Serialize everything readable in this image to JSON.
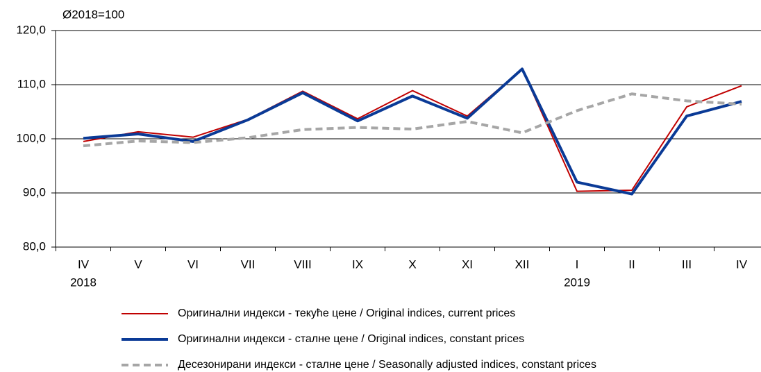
{
  "chart_data": {
    "type": "line",
    "ylabel": "Ø2018=100",
    "categories": [
      "IV",
      "V",
      "VI",
      "VII",
      "VIII",
      "IX",
      "X",
      "XI",
      "XII",
      "I",
      "II",
      "III",
      "IV"
    ],
    "category_years": [
      "2018",
      null,
      null,
      null,
      null,
      null,
      null,
      null,
      null,
      "2019",
      null,
      null,
      null
    ],
    "ylim": [
      80,
      120
    ],
    "yticks": [
      {
        "value": 80,
        "label": "80,0"
      },
      {
        "value": 90,
        "label": "90,0"
      },
      {
        "value": 100,
        "label": "100,0"
      },
      {
        "value": 110,
        "label": "110,0"
      },
      {
        "value": 120,
        "label": "120,0"
      }
    ],
    "grid": true,
    "series": [
      {
        "name": "Оригинални индекси - текуће цене / Original indices, current prices",
        "color": "#c00000",
        "width": 2,
        "dash": false,
        "values": [
          99.5,
          101.3,
          100.3,
          103.6,
          108.8,
          103.7,
          108.9,
          104.2,
          112.9,
          90.3,
          90.5,
          105.9,
          109.8
        ]
      },
      {
        "name": "Оригинални индекси - сталне цене / Original indices, constant prices",
        "color": "#0a3a96",
        "width": 4,
        "dash": false,
        "values": [
          100.1,
          100.9,
          99.5,
          103.5,
          108.5,
          103.3,
          107.9,
          103.8,
          112.9,
          92.0,
          89.8,
          104.2,
          106.9
        ]
      },
      {
        "name": "Десезонирани индекси - сталне цене / Seasonally adjusted indices, constant prices",
        "color": "#a6a6a6",
        "width": 4,
        "dash": true,
        "values": [
          98.7,
          99.6,
          99.3,
          100.2,
          101.7,
          102.1,
          101.8,
          103.2,
          101.1,
          105.2,
          108.3,
          107.0,
          106.4
        ]
      }
    ]
  }
}
